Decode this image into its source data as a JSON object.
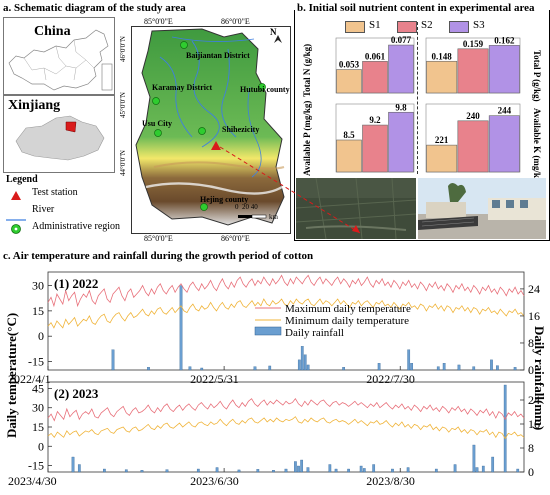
{
  "panel_a": {
    "title": "a. Schematic diagram of the study area",
    "china_label": "China",
    "xinjiang_label": "Xinjiang",
    "legend_title": "Legend",
    "legend": [
      "Test station",
      "River",
      "Administrative region"
    ],
    "coords": {
      "lon_top": [
        "85°0'0\"E",
        "86°0'0\"E"
      ],
      "lon_bottom": [
        "85°0'0\"E",
        "86°0'0\"E"
      ],
      "lat_left": [
        "46°0'0\"N",
        "45°0'0\"N",
        "44°0'0\"N"
      ]
    },
    "places": [
      "Baijiantan District",
      "Karamay District",
      "Hutubi county",
      "Usu City",
      "Shihezicity",
      "Hejing county"
    ],
    "north": "N",
    "scale": {
      "ticks": [
        "0",
        "20",
        "40"
      ],
      "unit": "km"
    },
    "colors": {
      "station": "#d91b1b",
      "river": "#3f7fe0",
      "admin": "#2fcc2f",
      "xinjiang_fill": "#d4d4d4"
    }
  },
  "panel_b": {
    "title": "b. Initial soil nutrient content in experimental area",
    "legend": [
      "S1",
      "S2",
      "S3"
    ],
    "colors": [
      "#f1c48e",
      "#e8828c",
      "#b192e6"
    ],
    "left_labels": [
      "Total N (g/kg)",
      "Available P (mg/kg)"
    ],
    "right_labels": [
      "Total P (g/kg)",
      "Available K (mg/kg)"
    ],
    "chart_data": [
      {
        "type": "bar",
        "ylabel": "Total N (g/kg)",
        "categories": [
          "S1",
          "S2",
          "S3"
        ],
        "values": [
          0.053,
          0.061,
          0.077
        ],
        "labels": [
          "0.053",
          "0.061",
          "0.077"
        ]
      },
      {
        "type": "bar",
        "ylabel": "Total P (g/kg)",
        "categories": [
          "S1",
          "S2",
          "S3"
        ],
        "values": [
          0.148,
          0.159,
          0.162
        ],
        "labels": [
          "0.148",
          "0.159",
          "0.162"
        ]
      },
      {
        "type": "bar",
        "ylabel": "Available P (mg/kg)",
        "categories": [
          "S1",
          "S2",
          "S3"
        ],
        "values": [
          8.5,
          9.2,
          9.8
        ],
        "labels": [
          "8.5",
          "9.2",
          "9.8"
        ]
      },
      {
        "type": "bar",
        "ylabel": "Available K (mg/kg)",
        "categories": [
          "S1",
          "S2",
          "S3"
        ],
        "values": [
          221,
          240,
          244
        ],
        "labels": [
          "221",
          "240",
          "244"
        ]
      }
    ]
  },
  "panel_c": {
    "title": "c. Air temperature and rainfall during the growth period of cotton",
    "ylabel_left": "Daily temperature(°C)",
    "ylabel_right": "Daily rainfall(mm)",
    "legend": [
      "Maximum daily temperature",
      "Minimum daily temperature",
      "Daily rainfall"
    ],
    "colors": {
      "tmax": "#e8707a",
      "tmin": "#f0b43a",
      "rain": "#6a9ed0"
    },
    "chart_data": [
      {
        "type": "line",
        "label": "(1) 2022",
        "x_ticks": [
          "2022/4/1",
          "2022/5/31",
          "2022/7/30"
        ],
        "y_left_ticks": [
          30,
          15,
          0,
          -15
        ],
        "y_right_ticks": [
          24,
          16,
          8,
          0
        ],
        "ylim_left": [
          -20,
          38
        ],
        "ylim_right": [
          0,
          29
        ],
        "days": 162,
        "tmax": [
          20,
          23,
          18,
          25,
          22,
          19,
          27,
          21,
          24,
          26,
          18,
          22,
          25,
          23,
          27,
          21,
          19,
          24,
          26,
          28,
          22,
          20,
          25,
          27,
          29,
          24,
          21,
          26,
          28,
          23,
          25,
          27,
          30,
          26,
          24,
          28,
          25,
          29,
          31,
          27,
          25,
          28,
          30,
          26,
          29,
          31,
          28,
          26,
          30,
          32,
          29,
          27,
          31,
          28,
          30,
          33,
          29,
          27,
          31,
          34,
          30,
          28,
          32,
          29,
          33,
          35,
          31,
          29,
          32,
          34,
          30,
          33,
          31,
          35,
          32,
          30,
          34,
          31,
          33,
          36,
          32,
          30,
          34,
          31,
          35,
          33,
          31,
          34,
          36,
          32,
          30,
          33,
          35,
          31,
          34,
          32,
          30,
          33,
          35,
          31,
          34,
          32,
          29,
          33,
          31,
          34,
          30,
          32,
          35,
          31,
          29,
          33,
          31,
          34,
          30,
          32,
          29,
          33,
          31,
          28,
          32,
          30,
          33,
          29,
          31,
          28,
          32,
          30,
          27,
          31,
          29,
          32,
          28,
          30,
          27,
          31,
          29,
          26,
          30,
          28,
          31,
          27,
          29,
          26,
          30,
          28,
          25,
          29,
          27,
          30,
          26,
          28,
          25,
          29,
          27,
          24,
          28,
          26,
          29,
          25,
          27,
          24
        ],
        "tmin": [
          6,
          8,
          5,
          9,
          7,
          5,
          10,
          7,
          9,
          11,
          6,
          8,
          10,
          9,
          12,
          8,
          7,
          10,
          12,
          13,
          9,
          8,
          11,
          13,
          14,
          11,
          9,
          12,
          14,
          11,
          12,
          14,
          16,
          13,
          12,
          15,
          13,
          16,
          17,
          14,
          13,
          15,
          17,
          14,
          16,
          18,
          15,
          14,
          17,
          19,
          16,
          15,
          18,
          16,
          17,
          20,
          17,
          15,
          18,
          20,
          17,
          16,
          19,
          17,
          20,
          21,
          18,
          17,
          19,
          21,
          18,
          20,
          18,
          22,
          19,
          18,
          21,
          19,
          20,
          22,
          19,
          18,
          21,
          19,
          22,
          20,
          19,
          21,
          22,
          19,
          18,
          20,
          22,
          19,
          21,
          20,
          18,
          20,
          22,
          19,
          21,
          19,
          17,
          20,
          19,
          21,
          18,
          20,
          21,
          19,
          17,
          20,
          19,
          21,
          18,
          19,
          17,
          20,
          18,
          16,
          19,
          18,
          20,
          17,
          18,
          16,
          19,
          18,
          15,
          18,
          17,
          19,
          16,
          18,
          15,
          18,
          17,
          14,
          17,
          16,
          18,
          15,
          17,
          14,
          17,
          16,
          13,
          16,
          15,
          17,
          14,
          15,
          13,
          16,
          14,
          12,
          15,
          14,
          16,
          13,
          14,
          12
        ],
        "rain": [
          {
            "d": 22,
            "v": 6
          },
          {
            "d": 34,
            "v": 0.8
          },
          {
            "d": 45,
            "v": 25
          },
          {
            "d": 48,
            "v": 1
          },
          {
            "d": 52,
            "v": 0.6
          },
          {
            "d": 70,
            "v": 1
          },
          {
            "d": 75,
            "v": 1.2
          },
          {
            "d": 85,
            "v": 3
          },
          {
            "d": 86,
            "v": 7
          },
          {
            "d": 87,
            "v": 4.5
          },
          {
            "d": 88,
            "v": 1.5
          },
          {
            "d": 100,
            "v": 0.8
          },
          {
            "d": 112,
            "v": 2
          },
          {
            "d": 122,
            "v": 6
          },
          {
            "d": 123,
            "v": 2
          },
          {
            "d": 132,
            "v": 1
          },
          {
            "d": 134,
            "v": 2
          },
          {
            "d": 139,
            "v": 1.5
          },
          {
            "d": 144,
            "v": 1
          },
          {
            "d": 150,
            "v": 3
          },
          {
            "d": 152,
            "v": 1.3
          },
          {
            "d": 158,
            "v": 0.8
          }
        ]
      },
      {
        "type": "line",
        "label": "(2) 2023",
        "x_ticks": [
          "2023/4/30",
          "2023/6/30",
          "2023/8/30"
        ],
        "y_left_ticks": [
          45,
          30,
          15,
          0,
          -15
        ],
        "y_right_ticks": [
          24,
          16,
          8,
          0
        ],
        "ylim_left": [
          -20,
          50
        ],
        "ylim_right": [
          0,
          30
        ],
        "days": 153,
        "tmax": [
          22,
          25,
          20,
          27,
          24,
          21,
          29,
          23,
          26,
          28,
          21,
          25,
          27,
          25,
          29,
          23,
          22,
          26,
          28,
          30,
          25,
          23,
          27,
          29,
          31,
          26,
          24,
          28,
          30,
          26,
          27,
          29,
          32,
          28,
          26,
          30,
          27,
          31,
          33,
          29,
          27,
          30,
          32,
          28,
          31,
          33,
          30,
          28,
          32,
          34,
          31,
          29,
          33,
          30,
          32,
          35,
          31,
          29,
          33,
          36,
          32,
          30,
          34,
          31,
          35,
          37,
          33,
          31,
          34,
          36,
          32,
          35,
          33,
          36,
          34,
          32,
          35,
          33,
          34,
          37,
          33,
          31,
          35,
          32,
          36,
          34,
          32,
          35,
          36,
          33,
          31,
          34,
          35,
          32,
          34,
          33,
          31,
          33,
          35,
          32,
          34,
          32,
          30,
          33,
          31,
          34,
          30,
          32,
          34,
          31,
          29,
          32,
          30,
          33,
          29,
          31,
          28,
          32,
          30,
          27,
          31,
          29,
          32,
          28,
          30,
          27,
          31,
          29,
          26,
          30,
          28,
          31,
          27,
          29,
          25,
          29,
          27,
          24,
          28,
          26,
          29,
          24,
          27,
          22,
          27,
          25,
          21,
          26,
          24,
          27,
          23,
          25,
          22
        ],
        "tmin": [
          8,
          10,
          7,
          11,
          9,
          7,
          12,
          9,
          11,
          12,
          8,
          10,
          12,
          11,
          13,
          10,
          9,
          12,
          13,
          14,
          11,
          10,
          13,
          14,
          15,
          12,
          11,
          14,
          15,
          12,
          13,
          15,
          17,
          14,
          13,
          16,
          14,
          17,
          18,
          15,
          14,
          16,
          18,
          15,
          17,
          19,
          16,
          15,
          18,
          19,
          17,
          16,
          19,
          17,
          18,
          21,
          18,
          16,
          19,
          21,
          18,
          17,
          20,
          18,
          21,
          22,
          19,
          18,
          20,
          22,
          19,
          21,
          19,
          22,
          20,
          19,
          21,
          20,
          21,
          23,
          19,
          18,
          21,
          19,
          22,
          20,
          19,
          21,
          22,
          19,
          18,
          20,
          21,
          19,
          20,
          19,
          17,
          19,
          21,
          18,
          20,
          18,
          16,
          19,
          18,
          20,
          17,
          18,
          20,
          17,
          15,
          18,
          16,
          19,
          15,
          17,
          14,
          17,
          16,
          13,
          16,
          15,
          17,
          13,
          15,
          12,
          15,
          14,
          11,
          14,
          13,
          15,
          11,
          13,
          10,
          13,
          12,
          9,
          12,
          11,
          13,
          9,
          11,
          7,
          11,
          10,
          6,
          10,
          9,
          11,
          8,
          9,
          7
        ],
        "rain": [
          {
            "d": 8,
            "v": 5
          },
          {
            "d": 10,
            "v": 2.5
          },
          {
            "d": 18,
            "v": 1
          },
          {
            "d": 25,
            "v": 0.8
          },
          {
            "d": 30,
            "v": 0.6
          },
          {
            "d": 38,
            "v": 0.8
          },
          {
            "d": 48,
            "v": 1
          },
          {
            "d": 54,
            "v": 1.5
          },
          {
            "d": 61,
            "v": 0.7
          },
          {
            "d": 67,
            "v": 0.9
          },
          {
            "d": 72,
            "v": 0.6
          },
          {
            "d": 76,
            "v": 1
          },
          {
            "d": 79,
            "v": 3.5
          },
          {
            "d": 80,
            "v": 2
          },
          {
            "d": 81,
            "v": 4
          },
          {
            "d": 83,
            "v": 1.5
          },
          {
            "d": 90,
            "v": 2.5
          },
          {
            "d": 92,
            "v": 1
          },
          {
            "d": 96,
            "v": 1
          },
          {
            "d": 100,
            "v": 2
          },
          {
            "d": 101,
            "v": 1.2
          },
          {
            "d": 104,
            "v": 2.5
          },
          {
            "d": 110,
            "v": 1
          },
          {
            "d": 115,
            "v": 1.5
          },
          {
            "d": 124,
            "v": 1
          },
          {
            "d": 130,
            "v": 2.5
          },
          {
            "d": 136,
            "v": 9
          },
          {
            "d": 137,
            "v": 1.5
          },
          {
            "d": 139,
            "v": 2
          },
          {
            "d": 142,
            "v": 5
          },
          {
            "d": 146,
            "v": 29
          },
          {
            "d": 150,
            "v": 1
          }
        ]
      }
    ]
  }
}
